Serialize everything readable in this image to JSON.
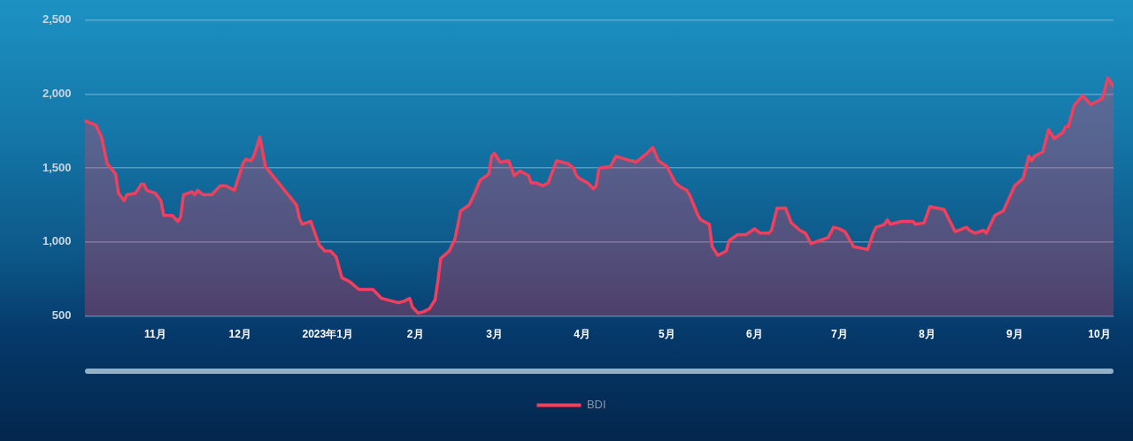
{
  "chart_data": {
    "type": "area",
    "x": [
      "2022-10-07",
      "2022-10-11",
      "2022-10-13",
      "2022-10-15",
      "2022-10-18",
      "2022-10-19",
      "2022-10-21",
      "2022-10-22",
      "2022-10-25",
      "2022-10-27",
      "2022-10-28",
      "2022-10-29",
      "2022-11-01",
      "2022-11-03",
      "2022-11-04",
      "2022-11-07",
      "2022-11-09",
      "2022-11-10",
      "2022-11-11",
      "2022-11-14",
      "2022-11-15",
      "2022-11-16",
      "2022-11-18",
      "2022-11-21",
      "2022-11-24",
      "2022-11-26",
      "2022-11-29",
      "2022-12-02",
      "2022-12-03",
      "2022-12-05",
      "2022-12-06",
      "2022-12-08",
      "2022-12-10",
      "2022-12-21",
      "2022-12-22",
      "2022-12-23",
      "2022-12-26",
      "2022-12-29",
      "2022-12-31",
      "2023-01-02",
      "2023-01-04",
      "2023-01-06",
      "2023-01-09",
      "2023-01-12",
      "2023-01-17",
      "2023-01-20",
      "2023-01-24",
      "2023-01-26",
      "2023-01-28",
      "2023-01-30",
      "2023-01-31",
      "2023-02-02",
      "2023-02-04",
      "2023-02-06",
      "2023-02-08",
      "2023-02-09",
      "2023-02-10",
      "2023-02-13",
      "2023-02-15",
      "2023-02-16",
      "2023-02-17",
      "2023-02-20",
      "2023-02-22",
      "2023-02-24",
      "2023-02-27",
      "2023-02-28",
      "2023-03-01",
      "2023-03-03",
      "2023-03-06",
      "2023-03-08",
      "2023-03-10",
      "2023-03-13",
      "2023-03-14",
      "2023-03-16",
      "2023-03-18",
      "2023-03-20",
      "2023-03-23",
      "2023-03-27",
      "2023-03-29",
      "2023-03-30",
      "2023-03-31",
      "2023-04-03",
      "2023-04-05",
      "2023-04-06",
      "2023-04-07",
      "2023-04-11",
      "2023-04-13",
      "2023-04-18",
      "2023-04-19",
      "2023-04-20",
      "2023-04-24",
      "2023-04-26",
      "2023-04-28",
      "2023-05-01",
      "2023-05-04",
      "2023-05-06",
      "2023-05-08",
      "2023-05-09",
      "2023-05-12",
      "2023-05-13",
      "2023-05-16",
      "2023-05-17",
      "2023-05-19",
      "2023-05-22",
      "2023-05-23",
      "2023-05-26",
      "2023-05-29",
      "2023-06-01",
      "2023-06-03",
      "2023-06-06",
      "2023-06-07",
      "2023-06-09",
      "2023-06-12",
      "2023-06-14",
      "2023-06-17",
      "2023-06-19",
      "2023-06-21",
      "2023-06-24",
      "2023-06-27",
      "2023-06-29",
      "2023-07-01",
      "2023-07-03",
      "2023-07-06",
      "2023-07-11",
      "2023-07-13",
      "2023-07-14",
      "2023-07-17",
      "2023-07-18",
      "2023-07-19",
      "2023-07-23",
      "2023-07-27",
      "2023-07-28",
      "2023-07-31",
      "2023-08-02",
      "2023-08-07",
      "2023-08-11",
      "2023-08-15",
      "2023-08-16",
      "2023-08-18",
      "2023-08-21",
      "2023-08-22",
      "2023-08-25",
      "2023-08-28",
      "2023-09-01",
      "2023-09-04",
      "2023-09-06",
      "2023-09-07",
      "2023-09-08",
      "2023-09-11",
      "2023-09-13",
      "2023-09-15",
      "2023-09-18",
      "2023-09-19",
      "2023-09-20",
      "2023-09-22",
      "2023-09-25",
      "2023-09-28",
      "2023-10-02",
      "2023-10-04",
      "2023-10-06"
    ],
    "series": [
      {
        "name": "BDI",
        "color": "#f53d5c",
        "values": [
          1820,
          1790,
          1710,
          1530,
          1460,
          1330,
          1280,
          1320,
          1330,
          1390,
          1390,
          1350,
          1330,
          1280,
          1180,
          1180,
          1140,
          1170,
          1320,
          1340,
          1320,
          1350,
          1320,
          1320,
          1380,
          1380,
          1350,
          1530,
          1560,
          1550,
          1590,
          1710,
          1510,
          1250,
          1160,
          1120,
          1140,
          980,
          940,
          940,
          900,
          760,
          730,
          680,
          680,
          620,
          600,
          590,
          600,
          620,
          560,
          520,
          530,
          550,
          610,
          740,
          890,
          940,
          1020,
          1110,
          1210,
          1250,
          1330,
          1420,
          1460,
          1580,
          1600,
          1540,
          1550,
          1450,
          1480,
          1450,
          1400,
          1400,
          1380,
          1400,
          1550,
          1530,
          1500,
          1450,
          1430,
          1400,
          1360,
          1380,
          1500,
          1510,
          1580,
          1550,
          1550,
          1540,
          1600,
          1640,
          1550,
          1510,
          1400,
          1370,
          1350,
          1320,
          1180,
          1150,
          1120,
          970,
          910,
          940,
          1010,
          1050,
          1050,
          1090,
          1060,
          1060,
          1080,
          1230,
          1230,
          1130,
          1080,
          1060,
          990,
          1010,
          1030,
          1100,
          1090,
          1070,
          970,
          950,
          1060,
          1100,
          1120,
          1150,
          1120,
          1140,
          1140,
          1120,
          1130,
          1240,
          1220,
          1070,
          1100,
          1080,
          1060,
          1080,
          1060,
          1180,
          1210,
          1380,
          1430,
          1580,
          1550,
          1580,
          1610,
          1760,
          1700,
          1740,
          1780,
          1780,
          1920,
          1990,
          1930,
          1970,
          2110,
          2050
        ]
      }
    ],
    "xlim": [
      "2022-10-07",
      "2023-10-06"
    ],
    "xticks": [
      {
        "value": "2022-11-01",
        "label": "11月"
      },
      {
        "value": "2022-12-01",
        "label": "12月"
      },
      {
        "value": "2023-01-01",
        "label": "2023年1月"
      },
      {
        "value": "2023-02-01",
        "label": "2月"
      },
      {
        "value": "2023-03-01",
        "label": "3月"
      },
      {
        "value": "2023-04-01",
        "label": "4月"
      },
      {
        "value": "2023-05-01",
        "label": "5月"
      },
      {
        "value": "2023-06-01",
        "label": "6月"
      },
      {
        "value": "2023-07-01",
        "label": "7月"
      },
      {
        "value": "2023-08-01",
        "label": "8月"
      },
      {
        "value": "2023-09-01",
        "label": "9月"
      },
      {
        "value": "2023-10-01",
        "label": "10月"
      }
    ],
    "ylim": [
      500,
      2500
    ],
    "yticks": [
      {
        "value": 500,
        "label": "500"
      },
      {
        "value": 1000,
        "label": "1,000"
      },
      {
        "value": 1500,
        "label": "1,500"
      },
      {
        "value": 2000,
        "label": "2,000"
      },
      {
        "value": 2500,
        "label": "2,500"
      }
    ],
    "grid": "y",
    "legend": "bottom",
    "marker": "none"
  }
}
